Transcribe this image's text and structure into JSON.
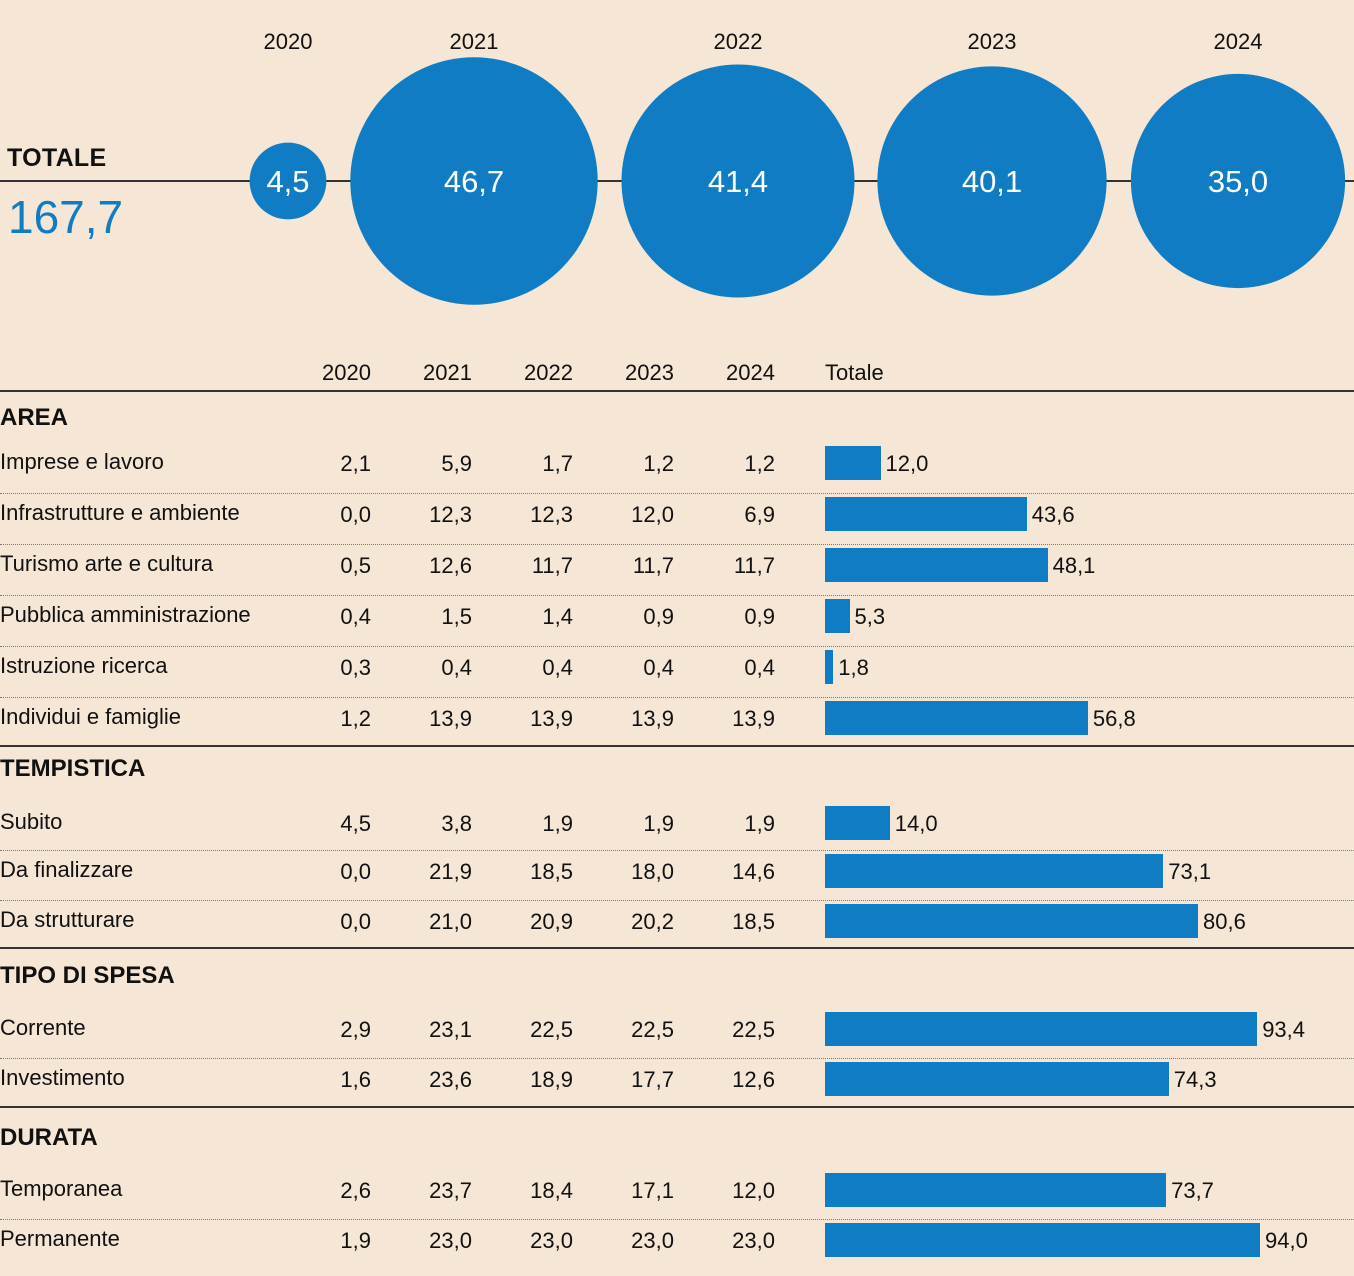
{
  "colors": {
    "background": "#f5e6d6",
    "accent": "#0f7cc4",
    "text": "#111111"
  },
  "headline": {
    "label": "TOTALE",
    "value": "167,7"
  },
  "chart_data": [
    {
      "type": "bubble",
      "categories": [
        "2020",
        "2021",
        "2022",
        "2023",
        "2024"
      ],
      "values": [
        4.5,
        46.7,
        41.4,
        40.1,
        35.0
      ],
      "value_labels": [
        "4,5",
        "46,7",
        "41,4",
        "40,1",
        "35,0"
      ]
    },
    {
      "type": "table",
      "columns": [
        "2020",
        "2021",
        "2022",
        "2023",
        "2024"
      ],
      "total_label": "Totale",
      "sections": [
        {
          "title": "AREA",
          "rows": [
            {
              "label": "Imprese e lavoro",
              "values": [
                "2,1",
                "5,9",
                "1,7",
                "1,2",
                "1,2"
              ],
              "total": 12.0,
              "total_label": "12,0"
            },
            {
              "label": "Infrastrutture e ambiente",
              "values": [
                "0,0",
                "12,3",
                "12,3",
                "12,0",
                "6,9"
              ],
              "total": 43.6,
              "total_label": "43,6"
            },
            {
              "label": "Turismo arte e cultura",
              "values": [
                "0,5",
                "12,6",
                "11,7",
                "11,7",
                "11,7"
              ],
              "total": 48.1,
              "total_label": "48,1"
            },
            {
              "label": "Pubblica amministrazione",
              "values": [
                "0,4",
                "1,5",
                "1,4",
                "0,9",
                "0,9"
              ],
              "total": 5.3,
              "total_label": "5,3"
            },
            {
              "label": "Istruzione ricerca",
              "values": [
                "0,3",
                "0,4",
                "0,4",
                "0,4",
                "0,4"
              ],
              "total": 1.8,
              "total_label": "1,8"
            },
            {
              "label": "Individui e famiglie",
              "values": [
                "1,2",
                "13,9",
                "13,9",
                "13,9",
                "13,9"
              ],
              "total": 56.8,
              "total_label": "56,8"
            }
          ]
        },
        {
          "title": "TEMPISTICA",
          "rows": [
            {
              "label": "Subito",
              "values": [
                "4,5",
                "3,8",
                "1,9",
                "1,9",
                "1,9"
              ],
              "total": 14.0,
              "total_label": "14,0"
            },
            {
              "label": "Da finalizzare",
              "values": [
                "0,0",
                "21,9",
                "18,5",
                "18,0",
                "14,6"
              ],
              "total": 73.1,
              "total_label": "73,1"
            },
            {
              "label": "Da strutturare",
              "values": [
                "0,0",
                "21,0",
                "20,9",
                "20,2",
                "18,5"
              ],
              "total": 80.6,
              "total_label": "80,6"
            }
          ]
        },
        {
          "title": "TIPO DI SPESA",
          "rows": [
            {
              "label": "Corrente",
              "values": [
                "2,9",
                "23,1",
                "22,5",
                "22,5",
                "22,5"
              ],
              "total": 93.4,
              "total_label": "93,4"
            },
            {
              "label": "Investimento",
              "values": [
                "1,6",
                "23,6",
                "18,9",
                "17,7",
                "12,6"
              ],
              "total": 74.3,
              "total_label": "74,3"
            }
          ]
        },
        {
          "title": "DURATA",
          "rows": [
            {
              "label": "Temporanea",
              "values": [
                "2,6",
                "23,7",
                "18,4",
                "17,1",
                "12,0"
              ],
              "total": 73.7,
              "total_label": "73,7"
            },
            {
              "label": "Permanente",
              "values": [
                "1,9",
                "23,0",
                "23,0",
                "23,0",
                "23,0"
              ],
              "total": 94.0,
              "total_label": "94,0"
            }
          ]
        }
      ]
    }
  ]
}
